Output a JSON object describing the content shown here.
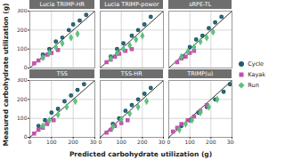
{
  "chart_data": {
    "type": "scatter",
    "xlabel": "Predicted carbohydrate utilization (g)",
    "ylabel": "Measured carbohydrate utilization (g)",
    "xlim": [
      0,
      300
    ],
    "ylim": [
      0,
      300
    ],
    "xticks": [
      0,
      100,
      200,
      300
    ],
    "yticks": [
      0,
      100,
      200,
      300
    ],
    "grid": true,
    "legend": "right",
    "panels": [
      {
        "title": "Lucia TRIMP-HR",
        "series": [
          {
            "name": "Cycle",
            "color": "#1f5c6b",
            "marker": "circle",
            "x": [
              60,
              90,
              120,
              150,
              180,
              200,
              230,
              260
            ],
            "y": [
              70,
              100,
              140,
              160,
              200,
              230,
              250,
              280
            ]
          },
          {
            "name": "Kayak",
            "color": "#c24fae",
            "marker": "square",
            "x": [
              20,
              40,
              60,
              80,
              100,
              130
            ],
            "y": [
              25,
              40,
              55,
              70,
              80,
              95
            ]
          },
          {
            "name": "Run",
            "color": "#5bbf7a",
            "marker": "diamond",
            "x": [
              60,
              90,
              120,
              150,
              190,
              220
            ],
            "y": [
              55,
              80,
              110,
              130,
              160,
              180
            ]
          }
        ]
      },
      {
        "title": "Lucia TRIMP-power",
        "series": [
          {
            "name": "Cycle",
            "color": "#1f5c6b",
            "marker": "circle",
            "x": [
              50,
              80,
              110,
              150,
              180,
              210,
              240
            ],
            "y": [
              60,
              100,
              130,
              170,
              200,
              230,
              270
            ]
          },
          {
            "name": "Kayak",
            "color": "#c24fae",
            "marker": "square",
            "x": [
              30,
              50,
              70,
              90,
              120,
              150
            ],
            "y": [
              30,
              45,
              60,
              75,
              90,
              100
            ]
          },
          {
            "name": "Run",
            "color": "#5bbf7a",
            "marker": "diamond",
            "x": [
              50,
              80,
              110,
              140,
              170,
              200
            ],
            "y": [
              50,
              80,
              100,
              120,
              150,
              170
            ]
          }
        ]
      },
      {
        "title": "sRPE-TL",
        "series": [
          {
            "name": "Cycle",
            "color": "#1f5c6b",
            "marker": "circle",
            "x": [
              70,
              100,
              130,
              160,
              190,
              220,
              250
            ],
            "y": [
              60,
              110,
              150,
              170,
              210,
              240,
              270
            ]
          },
          {
            "name": "Kayak",
            "color": "#c24fae",
            "marker": "square",
            "x": [
              40,
              60,
              80,
              100,
              120
            ],
            "y": [
              30,
              50,
              60,
              80,
              90
            ]
          },
          {
            "name": "Run",
            "color": "#5bbf7a",
            "marker": "diamond",
            "x": [
              60,
              90,
              120,
              150,
              180,
              210
            ],
            "y": [
              60,
              85,
              110,
              140,
              160,
              190
            ]
          }
        ]
      },
      {
        "title": "TSS",
        "series": [
          {
            "name": "Cycle",
            "color": "#1f5c6b",
            "marker": "circle",
            "x": [
              40,
              70,
              100,
              130,
              160,
              190,
              220,
              250
            ],
            "y": [
              60,
              90,
              130,
              150,
              190,
              220,
              250,
              280
            ]
          },
          {
            "name": "Kayak",
            "color": "#c24fae",
            "marker": "square",
            "x": [
              20,
              40,
              60,
              80,
              110
            ],
            "y": [
              20,
              40,
              50,
              70,
              90
            ]
          },
          {
            "name": "Run",
            "color": "#5bbf7a",
            "marker": "diamond",
            "x": [
              60,
              90,
              130,
              170,
              210
            ],
            "y": [
              60,
              90,
              120,
              160,
              190
            ]
          }
        ]
      },
      {
        "title": "TSS-HR",
        "series": [
          {
            "name": "Cycle",
            "color": "#1f5c6b",
            "marker": "circle",
            "x": [
              60,
              90,
              120,
              150,
              180,
              210,
              240
            ],
            "y": [
              70,
              100,
              140,
              170,
              200,
              230,
              260
            ]
          },
          {
            "name": "Kayak",
            "color": "#c24fae",
            "marker": "square",
            "x": [
              30,
              50,
              70,
              100,
              130
            ],
            "y": [
              25,
              40,
              60,
              75,
              90
            ]
          },
          {
            "name": "Run",
            "color": "#5bbf7a",
            "marker": "diamond",
            "x": [
              60,
              100,
              140,
              180,
              220
            ],
            "y": [
              55,
              95,
              125,
              160,
              190
            ]
          }
        ]
      },
      {
        "title": "TRIMP(u)",
        "series": [
          {
            "name": "Cycle",
            "color": "#1f5c6b",
            "marker": "circle",
            "x": [
              60,
              100,
              140,
              180,
              220,
              260,
              290
            ],
            "y": [
              60,
              90,
              130,
              160,
              200,
              240,
              280
            ]
          },
          {
            "name": "Kayak",
            "color": "#c24fae",
            "marker": "square",
            "x": [
              20,
              40,
              60,
              90,
              120,
              150,
              180
            ],
            "y": [
              30,
              50,
              70,
              90,
              110,
              140,
              170
            ]
          },
          {
            "name": "Run",
            "color": "#5bbf7a",
            "marker": "diamond",
            "x": [
              50,
              80,
              110,
              150,
              190,
              230
            ],
            "y": [
              40,
              70,
              90,
              130,
              160,
              200
            ]
          }
        ]
      }
    ]
  }
}
